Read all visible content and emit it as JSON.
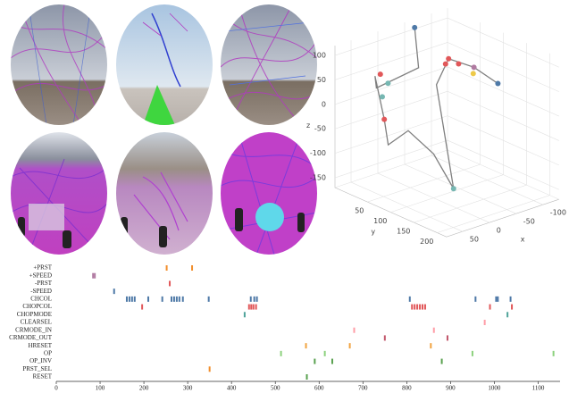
{
  "chart_data": [
    {
      "type": "line3d",
      "color": "#7f7f7f",
      "x": [
        -60,
        -50,
        20,
        40,
        40,
        50,
        30,
        0,
        -20,
        -40,
        -80,
        -110,
        -120
      ],
      "y": [
        -10,
        10,
        0,
        20,
        40,
        60,
        80,
        100,
        120,
        60,
        40,
        60,
        100
      ],
      "z": [
        110,
        40,
        20,
        60,
        -20,
        -60,
        -30,
        -80,
        -150,
        30,
        60,
        40,
        20
      ],
      "points": {
        "x": [
          -60,
          -80,
          -70,
          -90,
          30,
          20,
          35,
          -110,
          -120,
          -20,
          40,
          -100
        ],
        "y": [
          -10,
          40,
          45,
          50,
          20,
          25,
          30,
          60,
          100,
          120,
          40,
          70
        ],
        "z": [
          110,
          60,
          55,
          50,
          60,
          40,
          20,
          40,
          20,
          -150,
          -20,
          35
        ],
        "colors": [
          "#4e79a7",
          "#e15759",
          "#e15759",
          "#e15759",
          "#e15759",
          "#76b7b2",
          "#76b7b2",
          "#b07aa1",
          "#4e79a7",
          "#76b7b2",
          "#e15759",
          "#edc948"
        ]
      },
      "xlabel": "x",
      "ylabel": "y",
      "zlabel": "z",
      "xlim": [
        -130,
        80
      ],
      "ylim": [
        -20,
        220
      ],
      "zlim": [
        -170,
        120
      ],
      "xticks": [
        -100,
        -50,
        0,
        50
      ],
      "yticks": [
        50,
        100,
        150,
        200
      ],
      "zticks": [
        -150,
        -100,
        -50,
        0,
        50,
        100
      ],
      "grid": true
    },
    {
      "type": "event",
      "xlim": [
        0,
        1150
      ],
      "xticks": [
        0,
        100,
        200,
        300,
        400,
        500,
        600,
        700,
        800,
        900,
        1000,
        1100
      ],
      "series": [
        {
          "name": "+PRST",
          "color": "#f28e2b",
          "values": [
            252,
            310
          ]
        },
        {
          "name": "+SPEED",
          "color": "#b07aa1",
          "values": [
            84,
            88
          ]
        },
        {
          "name": "-PRST",
          "color": "#e15759",
          "values": [
            259
          ]
        },
        {
          "name": "-SPEED",
          "color": "#4e79a7",
          "values": [
            132
          ]
        },
        {
          "name": "CHCOL",
          "color": "#4e79a7",
          "values": [
            161,
            167,
            173,
            179,
            210,
            242,
            263,
            269,
            275,
            281,
            289,
            348,
            444,
            452,
            458,
            807,
            957,
            1004,
            1008,
            1037
          ]
        },
        {
          "name": "CHOPCOL",
          "color": "#e15759",
          "values": [
            196,
            440,
            445,
            450,
            456,
            812,
            818,
            824,
            830,
            836,
            842,
            990,
            1040
          ]
        },
        {
          "name": "CHOPMODE",
          "color": "#4fa39a",
          "values": [
            430,
            1030
          ]
        },
        {
          "name": "CLEARSEL",
          "color": "#ff9da7",
          "values": [
            978
          ]
        },
        {
          "name": "CRMODE_IN",
          "color": "#ff9da7",
          "values": [
            680,
            862
          ]
        },
        {
          "name": "CRMODE_OUT",
          "color": "#c2566b",
          "values": [
            750,
            893
          ]
        },
        {
          "name": "HRESET",
          "color": "#f1a340",
          "values": [
            570,
            670,
            855
          ]
        },
        {
          "name": "OP",
          "color": "#8cd17d",
          "values": [
            513,
            613,
            950,
            1135
          ]
        },
        {
          "name": "OP_INV",
          "color": "#59a14f",
          "values": [
            590,
            630,
            880
          ]
        },
        {
          "name": "PRST_SEL",
          "color": "#f28e2b",
          "values": [
            350
          ]
        },
        {
          "name": "RESET",
          "color": "#59a14f",
          "values": [
            572
          ]
        }
      ]
    }
  ]
}
